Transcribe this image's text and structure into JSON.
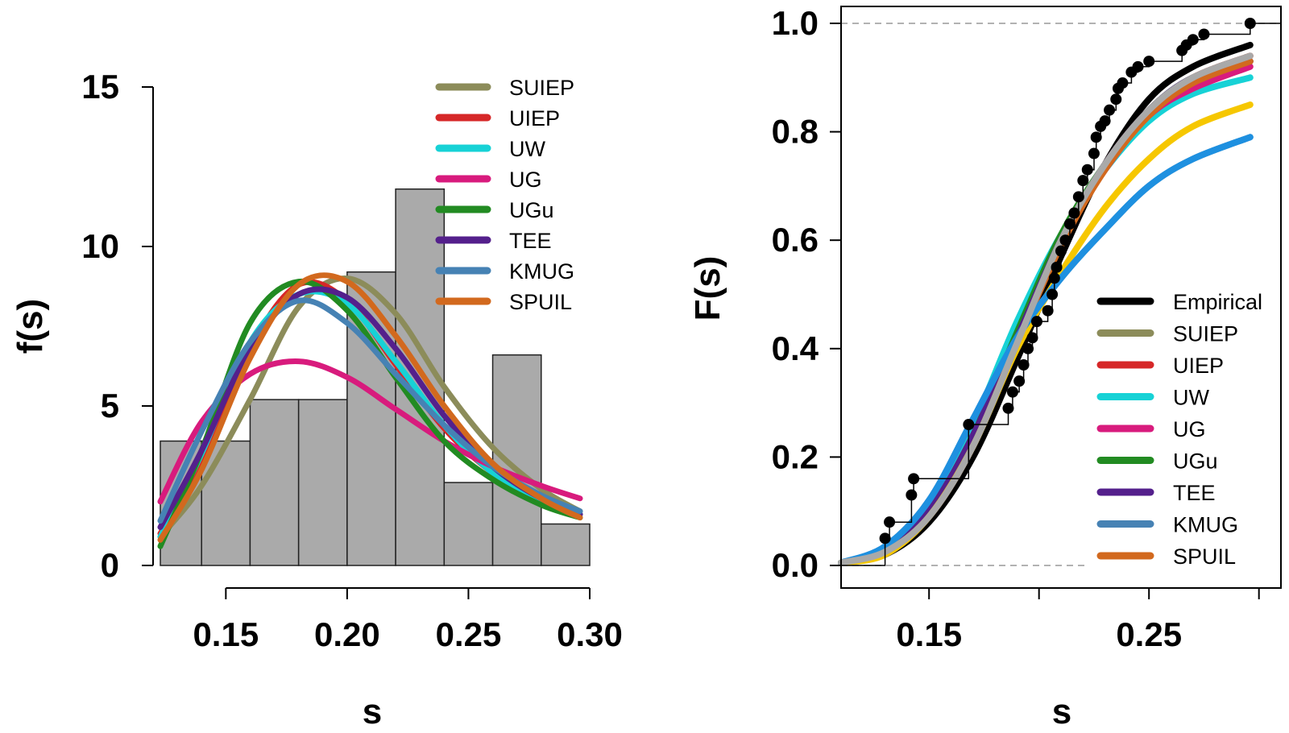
{
  "chart_data": [
    {
      "type": "bar",
      "subtype": "histogram-with-density-curves",
      "xlabel": "s",
      "ylabel": "f(s)",
      "xlim": [
        0.12,
        0.3
      ],
      "ylim": [
        0,
        15
      ],
      "xticks": [
        "0.15",
        "0.20",
        "0.25",
        "0.30"
      ],
      "xtick_values": [
        0.15,
        0.2,
        0.25,
        0.3
      ],
      "yticks": [
        "0",
        "5",
        "10",
        "15"
      ],
      "ytick_values": [
        0,
        5,
        10,
        15
      ],
      "bar_color": "#aaaaaa",
      "bins": [
        {
          "from": 0.123,
          "to": 0.14,
          "value": 3.9
        },
        {
          "from": 0.14,
          "to": 0.16,
          "value": 3.9
        },
        {
          "from": 0.16,
          "to": 0.18,
          "value": 5.2
        },
        {
          "from": 0.18,
          "to": 0.2,
          "value": 5.2
        },
        {
          "from": 0.2,
          "to": 0.22,
          "value": 9.2
        },
        {
          "from": 0.22,
          "to": 0.24,
          "value": 11.8
        },
        {
          "from": 0.24,
          "to": 0.26,
          "value": 2.6
        },
        {
          "from": 0.26,
          "to": 0.28,
          "value": 6.6
        },
        {
          "from": 0.28,
          "to": 0.3,
          "value": 1.3
        }
      ],
      "legend": {
        "position": "top-right"
      },
      "series": [
        {
          "name": "SUIEP",
          "color": "#8c8c5a",
          "x": [
            0.123,
            0.14,
            0.16,
            0.18,
            0.2,
            0.22,
            0.24,
            0.26,
            0.28,
            0.296
          ],
          "values": [
            0.9,
            2.5,
            5.2,
            8.1,
            9.0,
            7.9,
            5.6,
            3.7,
            2.4,
            1.7
          ]
        },
        {
          "name": "UIEP",
          "color": "#d62728",
          "x": [
            0.123,
            0.14,
            0.16,
            0.18,
            0.2,
            0.22,
            0.24,
            0.26,
            0.28,
            0.296
          ],
          "values": [
            1.0,
            3.2,
            6.8,
            8.8,
            8.3,
            6.3,
            4.3,
            2.9,
            2.0,
            1.6
          ]
        },
        {
          "name": "UW",
          "color": "#17d2d6",
          "x": [
            0.123,
            0.14,
            0.16,
            0.18,
            0.2,
            0.22,
            0.24,
            0.26,
            0.28,
            0.296
          ],
          "values": [
            0.9,
            3.5,
            7.0,
            8.5,
            8.2,
            6.4,
            4.4,
            2.9,
            2.0,
            1.6
          ]
        },
        {
          "name": "UG",
          "color": "#d81b7d",
          "x": [
            0.123,
            0.14,
            0.16,
            0.18,
            0.2,
            0.22,
            0.24,
            0.26,
            0.28,
            0.296
          ],
          "values": [
            2.0,
            4.5,
            6.0,
            6.4,
            5.9,
            4.9,
            3.9,
            3.1,
            2.5,
            2.1
          ]
        },
        {
          "name": "UGu",
          "color": "#228b22",
          "x": [
            0.123,
            0.14,
            0.16,
            0.18,
            0.2,
            0.22,
            0.24,
            0.26,
            0.28,
            0.296
          ],
          "values": [
            0.6,
            3.6,
            7.6,
            8.9,
            8.0,
            5.9,
            3.9,
            2.7,
            1.9,
            1.5
          ]
        },
        {
          "name": "TEE",
          "color": "#54208c",
          "x": [
            0.123,
            0.14,
            0.16,
            0.18,
            0.2,
            0.22,
            0.24,
            0.26,
            0.28,
            0.296
          ],
          "values": [
            1.2,
            3.6,
            6.8,
            8.5,
            8.4,
            6.8,
            4.7,
            3.1,
            2.1,
            1.6
          ]
        },
        {
          "name": "KMUG",
          "color": "#4682b4",
          "x": [
            0.123,
            0.14,
            0.16,
            0.18,
            0.2,
            0.22,
            0.24,
            0.26,
            0.28,
            0.296
          ],
          "values": [
            1.4,
            4.2,
            7.0,
            8.3,
            7.6,
            6.0,
            4.4,
            3.1,
            2.2,
            1.7
          ]
        },
        {
          "name": "SPUIL",
          "color": "#d2691e",
          "x": [
            0.123,
            0.14,
            0.16,
            0.18,
            0.2,
            0.22,
            0.24,
            0.26,
            0.28,
            0.296
          ],
          "values": [
            0.8,
            3.0,
            6.5,
            8.8,
            8.9,
            7.2,
            5.0,
            3.2,
            2.1,
            1.5
          ]
        }
      ]
    },
    {
      "type": "line",
      "subtype": "cdf-with-empirical-step",
      "xlabel": "s",
      "ylabel": "F(s)",
      "xlim": [
        0.11,
        0.31
      ],
      "ylim": [
        0.0,
        1.0
      ],
      "xticks": [
        "0.15",
        "",
        "0.25",
        ""
      ],
      "xtick_values": [
        0.15,
        0.2,
        0.25,
        0.3
      ],
      "yticks": [
        "0.0",
        "0.2",
        "0.4",
        "0.6",
        "0.8",
        "1.0"
      ],
      "ytick_values": [
        0.0,
        0.2,
        0.4,
        0.6,
        0.8,
        1.0
      ],
      "reference_lines": [
        0.0,
        1.0
      ],
      "legend": {
        "position": "bottom-right"
      },
      "empirical": {
        "name": "Empirical",
        "color": "#000000",
        "x": [
          0.13,
          0.132,
          0.142,
          0.143,
          0.168,
          0.186,
          0.188,
          0.191,
          0.193,
          0.195,
          0.197,
          0.199,
          0.204,
          0.206,
          0.207,
          0.208,
          0.21,
          0.212,
          0.214,
          0.216,
          0.218,
          0.22,
          0.222,
          0.225,
          0.226,
          0.228,
          0.23,
          0.232,
          0.235,
          0.236,
          0.238,
          0.242,
          0.245,
          0.25,
          0.265,
          0.267,
          0.27,
          0.275,
          0.296
        ],
        "y": [
          0.05,
          0.08,
          0.13,
          0.16,
          0.26,
          0.29,
          0.32,
          0.34,
          0.37,
          0.4,
          0.42,
          0.45,
          0.47,
          0.5,
          0.53,
          0.55,
          0.58,
          0.6,
          0.63,
          0.65,
          0.68,
          0.71,
          0.73,
          0.76,
          0.79,
          0.81,
          0.82,
          0.84,
          0.86,
          0.88,
          0.89,
          0.91,
          0.92,
          0.93,
          0.95,
          0.96,
          0.97,
          0.98,
          1.0
        ]
      },
      "series": [
        {
          "name": "Empirical",
          "color": "#000000",
          "x": [
            0.11,
            0.13,
            0.15,
            0.17,
            0.19,
            0.21,
            0.23,
            0.25,
            0.27,
            0.296
          ],
          "values": [
            0.005,
            0.02,
            0.08,
            0.2,
            0.38,
            0.57,
            0.74,
            0.86,
            0.92,
            0.96
          ]
        },
        {
          "name": "SUIEP",
          "color": "#8c8c5a",
          "x": [
            0.11,
            0.13,
            0.15,
            0.17,
            0.19,
            0.21,
            0.23,
            0.25,
            0.27,
            0.296
          ],
          "values": [
            0.005,
            0.025,
            0.09,
            0.22,
            0.41,
            0.6,
            0.74,
            0.84,
            0.9,
            0.94
          ]
        },
        {
          "name": "UIEP",
          "color": "#d62728",
          "x": [
            0.11,
            0.13,
            0.15,
            0.17,
            0.19,
            0.21,
            0.23,
            0.25,
            0.27,
            0.296
          ],
          "values": [
            0.005,
            0.025,
            0.1,
            0.24,
            0.42,
            0.6,
            0.74,
            0.84,
            0.9,
            0.94
          ]
        },
        {
          "name": "UW",
          "color": "#17d2d6",
          "x": [
            0.11,
            0.13,
            0.15,
            0.17,
            0.19,
            0.21,
            0.23,
            0.25,
            0.27,
            0.296
          ],
          "values": [
            0.005,
            0.03,
            0.11,
            0.26,
            0.45,
            0.61,
            0.73,
            0.82,
            0.87,
            0.9
          ]
        },
        {
          "name": "UG",
          "color": "#d81b7d",
          "x": [
            0.11,
            0.13,
            0.15,
            0.17,
            0.19,
            0.21,
            0.23,
            0.25,
            0.27,
            0.296
          ],
          "values": [
            0.005,
            0.025,
            0.1,
            0.24,
            0.42,
            0.6,
            0.73,
            0.83,
            0.88,
            0.92
          ]
        },
        {
          "name": "UGu",
          "color": "#228b22",
          "x": [
            0.11,
            0.13,
            0.15,
            0.17,
            0.19,
            0.21,
            0.23,
            0.25,
            0.27,
            0.296
          ],
          "values": [
            0.005,
            0.025,
            0.1,
            0.24,
            0.43,
            0.61,
            0.74,
            0.84,
            0.9,
            0.93
          ]
        },
        {
          "name": "TEE",
          "color": "#54208c",
          "x": [
            0.11,
            0.13,
            0.15,
            0.17,
            0.19,
            0.21,
            0.23,
            0.25,
            0.27,
            0.296
          ],
          "values": [
            0.005,
            0.025,
            0.1,
            0.24,
            0.42,
            0.6,
            0.74,
            0.84,
            0.9,
            0.93
          ]
        },
        {
          "name": "KMUG",
          "color": "#4682b4",
          "x": [
            0.11,
            0.13,
            0.15,
            0.17,
            0.19,
            0.21,
            0.23,
            0.25,
            0.27,
            0.296
          ],
          "values": [
            0.005,
            0.035,
            0.12,
            0.27,
            0.42,
            0.53,
            0.62,
            0.7,
            0.75,
            0.79
          ]
        },
        {
          "name": "SPUIL",
          "color": "#d2691e",
          "x": [
            0.11,
            0.13,
            0.15,
            0.17,
            0.19,
            0.21,
            0.23,
            0.25,
            0.27,
            0.296
          ],
          "values": [
            0.005,
            0.025,
            0.09,
            0.22,
            0.41,
            0.59,
            0.73,
            0.83,
            0.89,
            0.93
          ]
        },
        {
          "name": "",
          "color": "#f6c700",
          "x": [
            0.11,
            0.13,
            0.15,
            0.17,
            0.19,
            0.21,
            0.23,
            0.25,
            0.27,
            0.296
          ],
          "values": [
            0.005,
            0.02,
            0.09,
            0.22,
            0.4,
            0.54,
            0.66,
            0.75,
            0.81,
            0.85
          ]
        },
        {
          "name": "",
          "color": "#1e90e0",
          "x": [
            0.11,
            0.13,
            0.15,
            0.17,
            0.19,
            0.21,
            0.23,
            0.25,
            0.27,
            0.296
          ],
          "values": [
            0.005,
            0.035,
            0.12,
            0.27,
            0.42,
            0.53,
            0.62,
            0.7,
            0.75,
            0.79
          ]
        },
        {
          "name": "",
          "color": "#a9a9a9",
          "x": [
            0.11,
            0.13,
            0.15,
            0.17,
            0.19,
            0.21,
            0.23,
            0.25,
            0.27,
            0.296
          ],
          "values": [
            0.005,
            0.025,
            0.09,
            0.22,
            0.41,
            0.6,
            0.74,
            0.84,
            0.9,
            0.94
          ]
        }
      ]
    }
  ]
}
